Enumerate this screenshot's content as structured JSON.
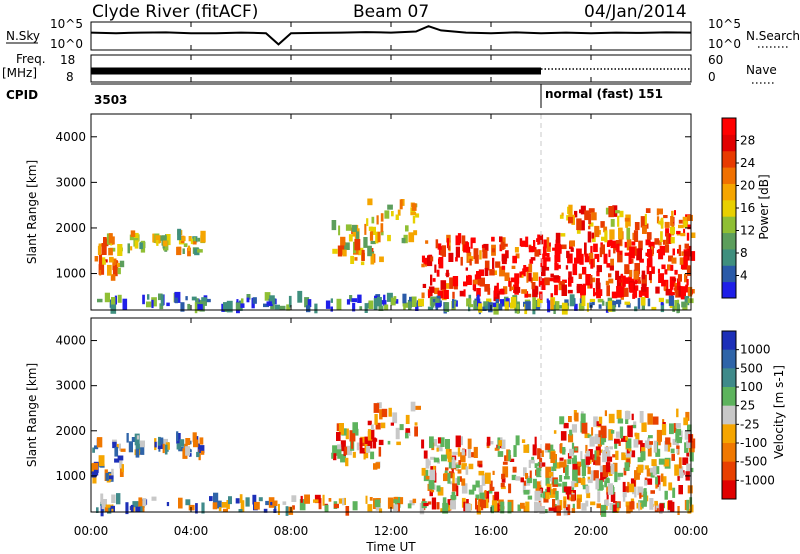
{
  "header": {
    "station": "Clyde River (fitACF)",
    "beam": "Beam 07",
    "date": "04/Jan/2014"
  },
  "colors": {
    "axis": "#000000",
    "dashed_marker": "#c8c8c8",
    "noise_trace": "#000000"
  },
  "icons": [
    "color-scale-bar",
    "dotted-line-legend-marker"
  ],
  "chart_data": [
    {
      "type": "line",
      "name": "noise-panel",
      "left_label": "N.Sky",
      "right_label": "N.Search",
      "left_ticks": [
        "10^5",
        "10^0"
      ],
      "right_ticks": [
        "10^5",
        "10^0"
      ],
      "xlim": [
        0,
        24
      ],
      "x": [
        0,
        1,
        2,
        3,
        4,
        5,
        6,
        7,
        7.5,
        8,
        9,
        10,
        11,
        12,
        13,
        13.5,
        14,
        15,
        16,
        17,
        18,
        19,
        20,
        21,
        22,
        23,
        24
      ],
      "series": [
        {
          "values_rel": [
            0.62,
            0.6,
            0.62,
            0.63,
            0.6,
            0.6,
            0.62,
            0.6,
            0.2,
            0.6,
            0.61,
            0.62,
            0.64,
            0.62,
            0.66,
            0.85,
            0.7,
            0.62,
            0.6,
            0.63,
            0.6,
            0.62,
            0.6,
            0.62,
            0.61,
            0.63,
            0.62
          ]
        }
      ]
    },
    {
      "type": "line",
      "name": "frequency-panel",
      "left_label_1": "Freq.",
      "left_label_2": "[MHz]",
      "right_label": "Nave",
      "left_ticks": [
        "18",
        "8"
      ],
      "right_ticks": [
        "60",
        "0"
      ],
      "xlim": [
        0,
        24
      ],
      "segments": [
        {
          "x_start": 0,
          "x_end": 18,
          "style": "solid"
        },
        {
          "x_start": 18,
          "x_end": 24,
          "style": "dotted"
        }
      ]
    },
    {
      "type": "table",
      "name": "cpid-panel",
      "label": "CPID",
      "entries": [
        {
          "x": 0,
          "text": "3503"
        },
        {
          "x": 18,
          "text": "normal (fast) 151"
        }
      ]
    },
    {
      "type": "heatmap",
      "name": "power-panel",
      "ylabel": "Slant Range [km]",
      "xlim": [
        0,
        24
      ],
      "ylim": [
        200,
        4500
      ],
      "yticks": [
        1000,
        2000,
        3000,
        4000
      ],
      "colorbar_label": "Power [dB]",
      "colorbar_ticks": [
        4,
        8,
        12,
        16,
        20,
        24,
        28
      ],
      "colorbar_range": [
        0,
        32
      ],
      "colormap": [
        "#1f1fe8",
        "#2a5aa8",
        "#3f8f7e",
        "#5c9e5c",
        "#8fbf34",
        "#e8d000",
        "#f5a500",
        "#f07000",
        "#e83a00",
        "#e10000",
        "#ff0000"
      ],
      "dashed_marker_x": 18
    },
    {
      "type": "heatmap",
      "name": "velocity-panel",
      "ylabel": "Slant Range [km]",
      "xlim": [
        0,
        24
      ],
      "ylim": [
        200,
        4500
      ],
      "yticks": [
        1000,
        2000,
        3000,
        4000
      ],
      "colorbar_label": "Velocity [m s-1]",
      "colorbar_ticks": [
        1000,
        500,
        100,
        25,
        -25,
        -100,
        -500,
        -1000
      ],
      "colormap": [
        "#1c2fb8",
        "#2f64a8",
        "#3f8a8a",
        "#5db35d",
        "#c8c8c8",
        "#f5a500",
        "#f07800",
        "#e84000",
        "#e00000"
      ],
      "dashed_marker_x": 18
    }
  ],
  "xaxis": {
    "label": "Time UT",
    "ticks": [
      "00:00",
      "04:00",
      "08:00",
      "12:00",
      "16:00",
      "20:00",
      "00:00"
    ],
    "tick_hours": [
      0,
      4,
      8,
      12,
      16,
      20,
      24
    ]
  }
}
